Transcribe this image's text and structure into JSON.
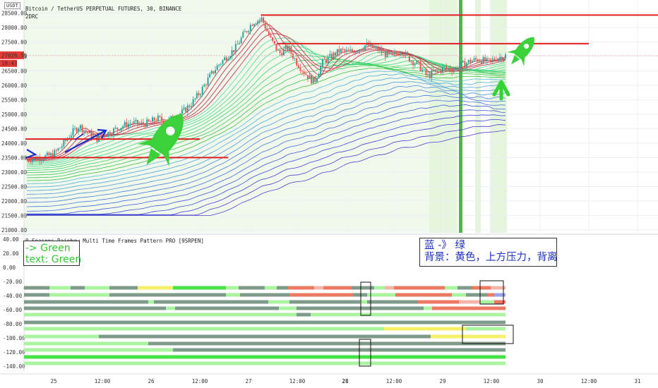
{
  "chart_data": [
    {
      "type": "candlestick",
      "title": "Bitcoin / TetherUS PERPETUAL FUTURES, 30, BINANCE",
      "subtitle": "2DRC",
      "currency_badge": "USDT",
      "y_ticks": [
        "28500.00",
        "28000.00",
        "27500.00",
        "27000.00",
        "26500.00",
        "26000.00",
        "25500.00",
        "25000.00",
        "24500.00",
        "24000.00",
        "23500.00",
        "23000.00",
        "22500.00",
        "22000.00",
        "21500.00",
        "21000.00"
      ],
      "y_tick_values": [
        28500,
        28000,
        27500,
        27000,
        26500,
        26000,
        25500,
        25000,
        24500,
        24000,
        23500,
        23000,
        22500,
        22000,
        21500,
        21000
      ],
      "ylim": [
        20900,
        28950
      ],
      "price_label": "27026.59",
      "time_label": "18:43",
      "price_label_value": 27026.59,
      "horizontal_lines": [
        {
          "color": "#e02020",
          "y": 24140,
          "x_from": "25 00:00",
          "x_to": "26 12:00"
        },
        {
          "color": "#e02020",
          "y": 23500,
          "x_from": "25 00:00",
          "x_to": "26 19:00"
        },
        {
          "color": "#e02020",
          "y": 28430,
          "x_from": "27 10:00",
          "x_to": "31 12:00"
        },
        {
          "color": "#e02020",
          "y": 27440,
          "x_from": "27 14:00",
          "x_to": "30 12:00"
        }
      ],
      "ohlc_path": [
        23450,
        23480,
        23520,
        23600,
        23900,
        24300,
        24600,
        24350,
        24150,
        24300,
        24450,
        24600,
        24700,
        24650,
        24700,
        24850,
        24750,
        24900,
        25100,
        25400,
        25800,
        26300,
        26700,
        27000,
        27300,
        27800,
        28200,
        28300,
        27600,
        27100,
        27300,
        26800,
        26400,
        26100,
        26800,
        27000,
        27200,
        27150,
        27250,
        27400,
        27300,
        27100,
        27000,
        27200,
        26900,
        26700,
        26300,
        26500,
        26600,
        26550,
        26700,
        26850,
        26900,
        26800,
        26950,
        27020
      ],
      "ribbon_bands": 28
    },
    {
      "type": "heatmap",
      "title": "9 Seasons Rainbow Multi Time Frames Pattern PRO [9SRPEN]",
      "y_ticks": [
        "40.00",
        "20.00",
        "0.00",
        "-20.00",
        "-40.00",
        "-60.00",
        "-80.00",
        "-100.00",
        "-120.00",
        "-140.00"
      ],
      "y_tick_values": [
        40,
        20,
        0,
        -20,
        -40,
        -60,
        -80,
        -100,
        -120,
        -140
      ],
      "ylim": [
        -147,
        45
      ],
      "colors": {
        "dark": "#7e9a8a",
        "light": "#a9f3a1",
        "bright": "#44e244",
        "yellow": "#f6ef6a",
        "red": "#ec7a63",
        "lightred": "#f3b5a8",
        "blue": "#9aa4ea"
      }
    }
  ],
  "x_ticks": [
    "25",
    "12:00",
    "26",
    "12:00",
    "27",
    "12:00",
    "28",
    "12:00",
    "29",
    "12:00",
    "30",
    "12:00",
    "31"
  ],
  "x_tick_bold": [
    false,
    false,
    false,
    false,
    false,
    false,
    true,
    false,
    false,
    false,
    false,
    false,
    false
  ],
  "annotations": {
    "green_line1": "-> Green",
    "green_line2": "text: Green",
    "blue_line1": "蓝 -》 绿",
    "blue_line2": "背景：黄色，上方压力，背离"
  }
}
